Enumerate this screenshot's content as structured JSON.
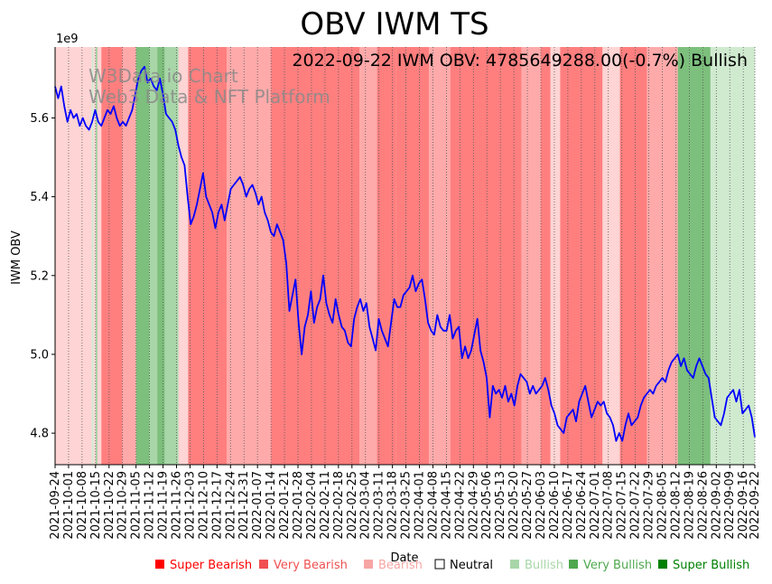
{
  "chart_data": {
    "type": "line",
    "title": "OBV IWM TS",
    "annotation": "2022-09-22 IWM OBV: 4785649288.00(-0.7%) Bullish",
    "watermark_line1": "W3Data.io Chart",
    "watermark_line2": "Web3 Data & NFT Platform",
    "xlabel": "Date",
    "ylabel": "IWM OBV",
    "y_offset_label": "1e9",
    "ylim": [
      4.72,
      5.78
    ],
    "yticks": [
      4.8,
      5.0,
      5.2,
      5.4,
      5.6
    ],
    "ytick_labels": [
      "4.8",
      "5.0",
      "5.2",
      "5.4",
      "5.6"
    ],
    "x_start": "2021-09-24",
    "x_end": "2022-09-22",
    "xtick_labels": [
      "2021-09-24",
      "2021-10-01",
      "2021-10-08",
      "2021-10-15",
      "2021-10-22",
      "2021-10-29",
      "2021-11-05",
      "2021-11-12",
      "2021-11-19",
      "2021-11-26",
      "2021-12-03",
      "2021-12-10",
      "2021-12-17",
      "2021-12-24",
      "2021-12-31",
      "2022-01-07",
      "2022-01-14",
      "2022-01-21",
      "2022-01-28",
      "2022-02-04",
      "2022-02-11",
      "2022-02-18",
      "2022-02-25",
      "2022-03-04",
      "2022-03-11",
      "2022-03-18",
      "2022-03-25",
      "2022-04-01",
      "2022-04-08",
      "2022-04-15",
      "2022-04-22",
      "2022-04-29",
      "2022-05-06",
      "2022-05-13",
      "2022-05-20",
      "2022-05-27",
      "2022-06-03",
      "2022-06-10",
      "2022-06-17",
      "2022-06-24",
      "2022-07-01",
      "2022-07-08",
      "2022-07-15",
      "2022-07-22",
      "2022-07-29",
      "2022-08-05",
      "2022-08-12",
      "2022-08-19",
      "2022-08-26",
      "2022-09-02",
      "2022-09-09",
      "2022-09-16",
      "2022-09-22"
    ],
    "series": [
      {
        "name": "IWM OBV",
        "color": "#0000ff",
        "values_1e9": [
          5.68,
          5.65,
          5.68,
          5.63,
          5.59,
          5.62,
          5.6,
          5.61,
          5.58,
          5.6,
          5.58,
          5.57,
          5.59,
          5.62,
          5.59,
          5.58,
          5.6,
          5.62,
          5.61,
          5.63,
          5.6,
          5.58,
          5.59,
          5.58,
          5.6,
          5.62,
          5.66,
          5.7,
          5.72,
          5.73,
          5.69,
          5.7,
          5.68,
          5.67,
          5.7,
          5.66,
          5.61,
          5.6,
          5.59,
          5.57,
          5.53,
          5.5,
          5.48,
          5.4,
          5.33,
          5.35,
          5.38,
          5.42,
          5.46,
          5.4,
          5.38,
          5.36,
          5.32,
          5.36,
          5.38,
          5.34,
          5.38,
          5.42,
          5.43,
          5.44,
          5.45,
          5.43,
          5.4,
          5.42,
          5.43,
          5.41,
          5.38,
          5.4,
          5.36,
          5.34,
          5.31,
          5.3,
          5.33,
          5.31,
          5.29,
          5.23,
          5.11,
          5.15,
          5.19,
          5.08,
          5.0,
          5.07,
          5.1,
          5.16,
          5.08,
          5.12,
          5.14,
          5.2,
          5.13,
          5.1,
          5.08,
          5.14,
          5.1,
          5.07,
          5.06,
          5.03,
          5.02,
          5.09,
          5.12,
          5.14,
          5.11,
          5.13,
          5.07,
          5.04,
          5.01,
          5.09,
          5.06,
          5.04,
          5.02,
          5.08,
          5.14,
          5.12,
          5.12,
          5.15,
          5.16,
          5.17,
          5.2,
          5.16,
          5.18,
          5.19,
          5.14,
          5.08,
          5.06,
          5.05,
          5.1,
          5.07,
          5.06,
          5.06,
          5.1,
          5.04,
          5.06,
          5.07,
          4.99,
          5.02,
          4.99,
          5.01,
          5.05,
          5.09,
          5.01,
          4.98,
          4.94,
          4.84,
          4.92,
          4.9,
          4.91,
          4.89,
          4.92,
          4.88,
          4.9,
          4.87,
          4.92,
          4.95,
          4.94,
          4.93,
          4.9,
          4.92,
          4.9,
          4.91,
          4.92,
          4.94,
          4.91,
          4.87,
          4.85,
          4.82,
          4.81,
          4.8,
          4.84,
          4.85,
          4.86,
          4.83,
          4.88,
          4.9,
          4.92,
          4.88,
          4.84,
          4.86,
          4.88,
          4.87,
          4.88,
          4.85,
          4.84,
          4.82,
          4.78,
          4.8,
          4.78,
          4.82,
          4.85,
          4.82,
          4.83,
          4.84,
          4.87,
          4.89,
          4.9,
          4.91,
          4.9,
          4.92,
          4.93,
          4.94,
          4.93,
          4.96,
          4.98,
          4.99,
          5.0,
          4.97,
          4.99,
          4.96,
          4.95,
          4.94,
          4.97,
          4.99,
          4.97,
          4.95,
          4.94,
          4.89,
          4.84,
          4.83,
          4.82,
          4.85,
          4.89,
          4.9,
          4.91,
          4.88,
          4.91,
          4.85,
          4.86,
          4.87,
          4.84,
          4.79
        ]
      }
    ],
    "bands": [
      [
        "2021-09-24",
        "2021-10-13",
        0
      ],
      [
        "2021-10-13",
        "2021-10-14",
        4
      ],
      [
        "2021-10-14",
        "2021-10-15",
        0
      ],
      [
        "2021-10-15",
        "2021-10-16",
        5
      ],
      [
        "2021-10-16",
        "2021-10-18",
        0
      ],
      [
        "2021-10-18",
        "2021-10-29",
        2
      ],
      [
        "2021-10-29",
        "2021-11-05",
        1
      ],
      [
        "2021-11-05",
        "2021-11-12",
        6
      ],
      [
        "2021-11-12",
        "2021-11-16",
        5
      ],
      [
        "2021-11-16",
        "2021-11-20",
        6
      ],
      [
        "2021-11-20",
        "2021-11-27",
        5
      ],
      [
        "2021-11-27",
        "2021-12-02",
        0
      ],
      [
        "2021-12-02",
        "2021-12-22",
        2
      ],
      [
        "2021-12-22",
        "2022-01-14",
        1
      ],
      [
        "2022-01-14",
        "2022-03-01",
        2
      ],
      [
        "2022-03-01",
        "2022-03-10",
        1
      ],
      [
        "2022-03-10",
        "2022-03-20",
        2
      ],
      [
        "2022-03-20",
        "2022-04-06",
        2
      ],
      [
        "2022-04-06",
        "2022-04-17",
        1
      ],
      [
        "2022-04-17",
        "2022-05-24",
        2
      ],
      [
        "2022-05-24",
        "2022-06-03",
        1
      ],
      [
        "2022-06-03",
        "2022-06-08",
        2
      ],
      [
        "2022-06-08",
        "2022-06-13",
        0
      ],
      [
        "2022-06-13",
        "2022-07-05",
        2
      ],
      [
        "2022-07-05",
        "2022-07-14",
        0
      ],
      [
        "2022-07-14",
        "2022-07-28",
        2
      ],
      [
        "2022-07-28",
        "2022-08-13",
        1
      ],
      [
        "2022-08-13",
        "2022-08-30",
        6
      ],
      [
        "2022-08-30",
        "2022-09-22",
        4
      ]
    ],
    "band_palette": [
      "#ffd4d4",
      "#ffaaaa",
      "#ff7f7f",
      "#ffffff",
      "#d0ead0",
      "#a8d6a8",
      "#7dbf7d"
    ],
    "legend": [
      {
        "label": "Super Bearish",
        "color": "#ff0000"
      },
      {
        "label": "Very Bearish",
        "color": "#f05050"
      },
      {
        "label": "Bearish",
        "color": "#f8a5a5"
      },
      {
        "label": "Neutral",
        "color": "#000000"
      },
      {
        "label": "Bullish",
        "color": "#a8d6a8"
      },
      {
        "label": "Very Bullish",
        "color": "#4fa84f"
      },
      {
        "label": "Super Bullish",
        "color": "#008000"
      }
    ]
  }
}
